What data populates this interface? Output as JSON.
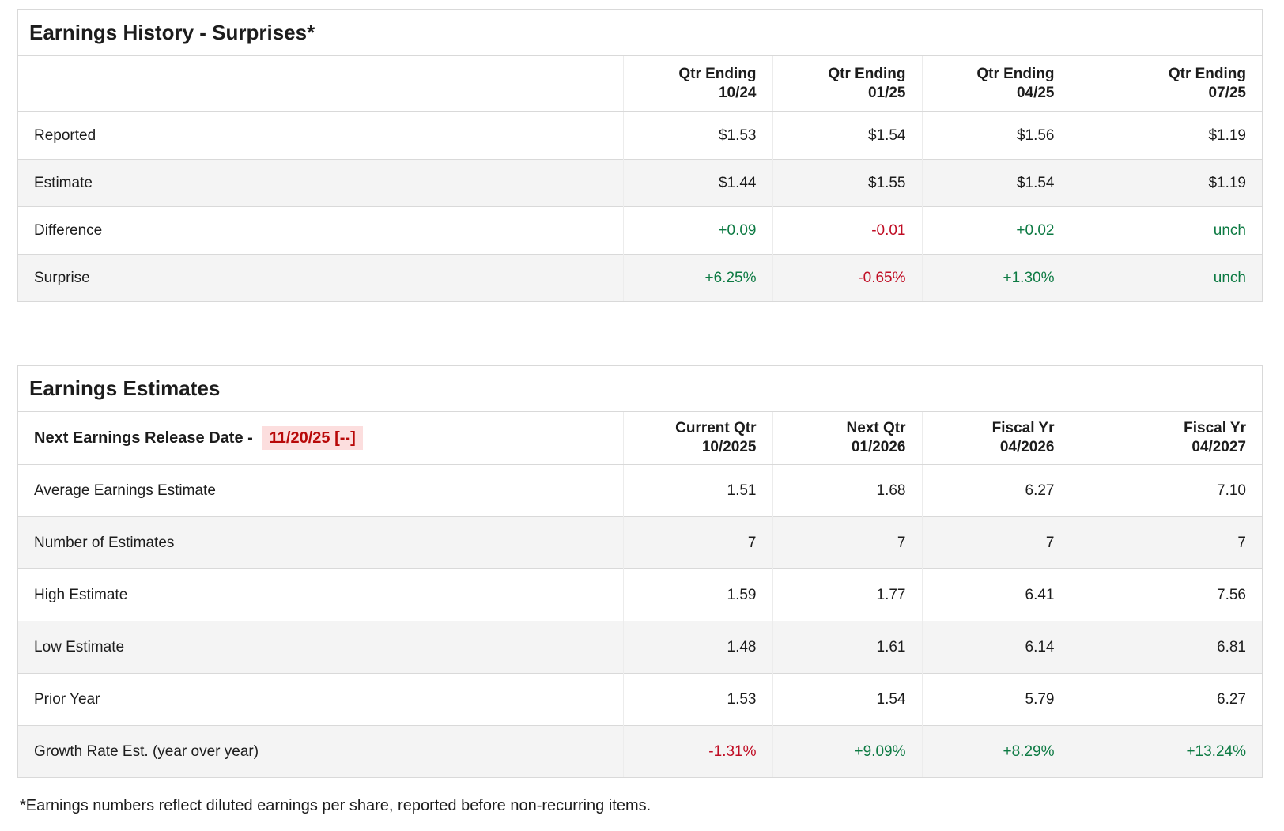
{
  "colors": {
    "positive": "#0d7a43",
    "negative": "#c00d24",
    "release_date_text": "#b80808",
    "release_date_bg": "#fcdede"
  },
  "surprises_table": {
    "title": "Earnings History - Surprises*",
    "columns": [
      {
        "line1": "Qtr Ending",
        "line2": "10/24"
      },
      {
        "line1": "Qtr Ending",
        "line2": "01/25"
      },
      {
        "line1": "Qtr Ending",
        "line2": "04/25"
      },
      {
        "line1": "Qtr Ending",
        "line2": "07/25"
      }
    ],
    "rows": [
      {
        "label": "Reported",
        "values": [
          {
            "text": "$1.53"
          },
          {
            "text": "$1.54"
          },
          {
            "text": "$1.56"
          },
          {
            "text": "$1.19"
          }
        ]
      },
      {
        "label": "Estimate",
        "values": [
          {
            "text": "$1.44"
          },
          {
            "text": "$1.55"
          },
          {
            "text": "$1.54"
          },
          {
            "text": "$1.19"
          }
        ]
      },
      {
        "label": "Difference",
        "values": [
          {
            "text": "+0.09",
            "color": "positive"
          },
          {
            "text": "-0.01",
            "color": "negative"
          },
          {
            "text": "+0.02",
            "color": "positive"
          },
          {
            "text": "unch",
            "color": "positive"
          }
        ]
      },
      {
        "label": "Surprise",
        "values": [
          {
            "text": "+6.25%",
            "color": "positive"
          },
          {
            "text": "-0.65%",
            "color": "negative"
          },
          {
            "text": "+1.30%",
            "color": "positive"
          },
          {
            "text": "unch",
            "color": "positive"
          }
        ]
      }
    ]
  },
  "estimates_table": {
    "title": "Earnings Estimates",
    "release_label": "Next Earnings Release Date -",
    "release_date": "11/20/25 [--]",
    "columns": [
      {
        "line1": "Current Qtr",
        "line2": "10/2025"
      },
      {
        "line1": "Next Qtr",
        "line2": "01/2026"
      },
      {
        "line1": "Fiscal Yr",
        "line2": "04/2026"
      },
      {
        "line1": "Fiscal Yr",
        "line2": "04/2027"
      }
    ],
    "rows": [
      {
        "label": "Average Earnings Estimate",
        "values": [
          {
            "text": "1.51"
          },
          {
            "text": "1.68"
          },
          {
            "text": "6.27"
          },
          {
            "text": "7.10"
          }
        ]
      },
      {
        "label": "Number of Estimates",
        "values": [
          {
            "text": "7"
          },
          {
            "text": "7"
          },
          {
            "text": "7"
          },
          {
            "text": "7"
          }
        ]
      },
      {
        "label": "High Estimate",
        "values": [
          {
            "text": "1.59"
          },
          {
            "text": "1.77"
          },
          {
            "text": "6.41"
          },
          {
            "text": "7.56"
          }
        ]
      },
      {
        "label": "Low Estimate",
        "values": [
          {
            "text": "1.48"
          },
          {
            "text": "1.61"
          },
          {
            "text": "6.14"
          },
          {
            "text": "6.81"
          }
        ]
      },
      {
        "label": "Prior Year",
        "values": [
          {
            "text": "1.53"
          },
          {
            "text": "1.54"
          },
          {
            "text": "5.79"
          },
          {
            "text": "6.27"
          }
        ]
      },
      {
        "label": "Growth Rate Est. (year over year)",
        "values": [
          {
            "text": "-1.31%",
            "color": "negative"
          },
          {
            "text": "+9.09%",
            "color": "positive"
          },
          {
            "text": "+8.29%",
            "color": "positive"
          },
          {
            "text": "+13.24%",
            "color": "positive"
          }
        ]
      }
    ]
  },
  "footnote": "*Earnings numbers reflect diluted earnings per share, reported before non-recurring items."
}
